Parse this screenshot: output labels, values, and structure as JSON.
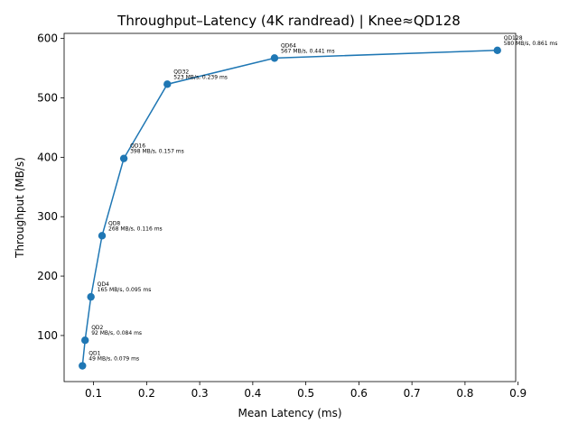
{
  "chart_data": {
    "type": "line",
    "title": "Throughput–Latency (4K randread) | Knee≈QD128",
    "xlabel": "Mean Latency (ms)",
    "ylabel": "Throughput (MB/s)",
    "xlim": [
      0.0445,
      0.8955
    ],
    "ylim": [
      22.45,
      608.55
    ],
    "xticks": [
      0.1,
      0.2,
      0.3,
      0.4,
      0.5,
      0.6,
      0.7,
      0.8,
      0.9
    ],
    "xtick_labels": [
      "0.1",
      "0.2",
      "0.3",
      "0.4",
      "0.5",
      "0.6",
      "0.7",
      "0.8",
      "0.9"
    ],
    "yticks": [
      100,
      200,
      300,
      400,
      500,
      600
    ],
    "ytick_labels": [
      "100",
      "200",
      "300",
      "400",
      "500",
      "600"
    ],
    "grid": false,
    "series": [
      {
        "color": "#1f77b4",
        "marker": "circle",
        "points": [
          {
            "x": 0.079,
            "y": 49,
            "label_line1": "QD1",
            "label_line2": "49 MB/s, 0.079 ms"
          },
          {
            "x": 0.084,
            "y": 92,
            "label_line1": "QD2",
            "label_line2": "92 MB/s, 0.084 ms"
          },
          {
            "x": 0.095,
            "y": 165,
            "label_line1": "QD4",
            "label_line2": "165 MB/s, 0.095 ms"
          },
          {
            "x": 0.116,
            "y": 268,
            "label_line1": "QD8",
            "label_line2": "268 MB/s, 0.116 ms"
          },
          {
            "x": 0.157,
            "y": 398,
            "label_line1": "QD16",
            "label_line2": "398 MB/s, 0.157 ms"
          },
          {
            "x": 0.239,
            "y": 523,
            "label_line1": "QD32",
            "label_line2": "523 MB/s, 0.239 ms"
          },
          {
            "x": 0.441,
            "y": 567,
            "label_line1": "QD64",
            "label_line2": "567 MB/s, 0.441 ms"
          },
          {
            "x": 0.861,
            "y": 580,
            "label_line1": "QD128",
            "label_line2": "580 MB/s, 0.861 ms"
          }
        ]
      }
    ]
  }
}
